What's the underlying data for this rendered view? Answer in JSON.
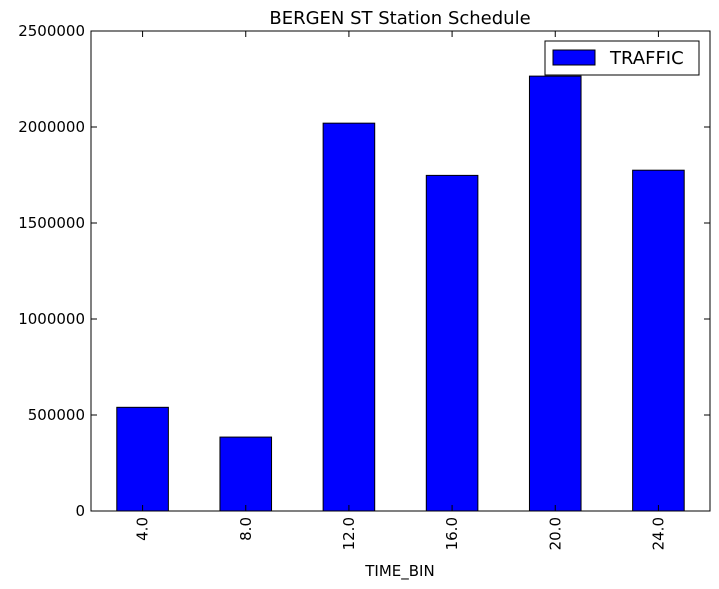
{
  "chart_data": {
    "type": "bar",
    "title": "BERGEN ST Station Schedule",
    "xlabel": "TIME_BIN",
    "ylabel": "",
    "categories": [
      "4.0",
      "8.0",
      "12.0",
      "16.0",
      "20.0",
      "24.0"
    ],
    "series": [
      {
        "name": "TRAFFIC",
        "values": [
          540000,
          385000,
          2020000,
          1748000,
          2265000,
          1775000
        ],
        "color": "#0000ff"
      }
    ],
    "ylim": [
      0,
      2500000
    ],
    "yticks": [
      0,
      500000,
      1000000,
      1500000,
      2000000,
      2500000
    ],
    "ytick_labels": [
      "0",
      "500000",
      "1000000",
      "1500000",
      "2000000",
      "2500000"
    ],
    "grid": false,
    "legend_position": "top-right",
    "x_tick_rotation": "vertical"
  }
}
